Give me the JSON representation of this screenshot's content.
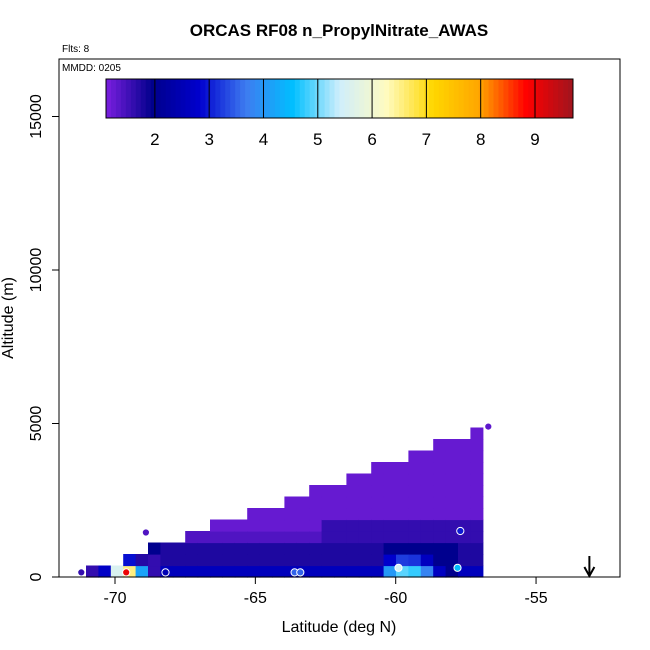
{
  "chart_data": {
    "type": "heatmap",
    "title": "ORCAS RF08 n_PropylNitrate_AWAS",
    "subtitle": "Flts: 8",
    "annotation": "MMDD: 0205",
    "xlabel": "Latitude (deg N)",
    "ylabel": "Altitude (m)",
    "xlim": [
      -72,
      -52
    ],
    "ylim": [
      0,
      16500
    ],
    "x_ticks": [
      -70,
      -65,
      -60,
      -55
    ],
    "x_tick_labels": [
      "-70",
      "-65",
      "-60",
      "-55"
    ],
    "y_ticks": [
      0,
      5000,
      10000,
      15000
    ],
    "y_tick_labels": [
      "0",
      "5000",
      "10000",
      "15000"
    ],
    "colorbar": {
      "colors": [
        "#7b1fe0",
        "#00008b",
        "#0000cd",
        "#3e7cf0",
        "#00bfff",
        "#cfeefc",
        "#fffbc0",
        "#ffd700",
        "#ffa500",
        "#ff0000",
        "#a0141e"
      ],
      "tick_values": [
        2,
        3,
        4,
        5,
        6,
        7,
        8,
        9
      ],
      "tick_labels": [
        "2",
        "3",
        "4",
        "5",
        "6",
        "7",
        "8",
        "9"
      ],
      "range": [
        1.1,
        9.7
      ]
    },
    "arrow_latitude": -53.1,
    "grid": false,
    "legend": "none",
    "samples": [
      {
        "lat": -71.2,
        "alt": 150,
        "value": 1.6
      },
      {
        "lat": -69.6,
        "alt": 150,
        "value": 9.0
      },
      {
        "lat": -68.2,
        "alt": 150,
        "value": 2.5
      },
      {
        "lat": -68.9,
        "alt": 1450,
        "value": 1.4
      },
      {
        "lat": -63.6,
        "alt": 150,
        "value": 3.5
      },
      {
        "lat": -63.4,
        "alt": 150,
        "value": 3.5
      },
      {
        "lat": -59.9,
        "alt": 300,
        "value": 5.5
      },
      {
        "lat": -57.8,
        "alt": 300,
        "value": 4.5
      },
      {
        "lat": -57.7,
        "alt": 1500,
        "value": 3.0
      },
      {
        "lat": -56.7,
        "alt": 4900,
        "value": 1.3
      }
    ]
  }
}
